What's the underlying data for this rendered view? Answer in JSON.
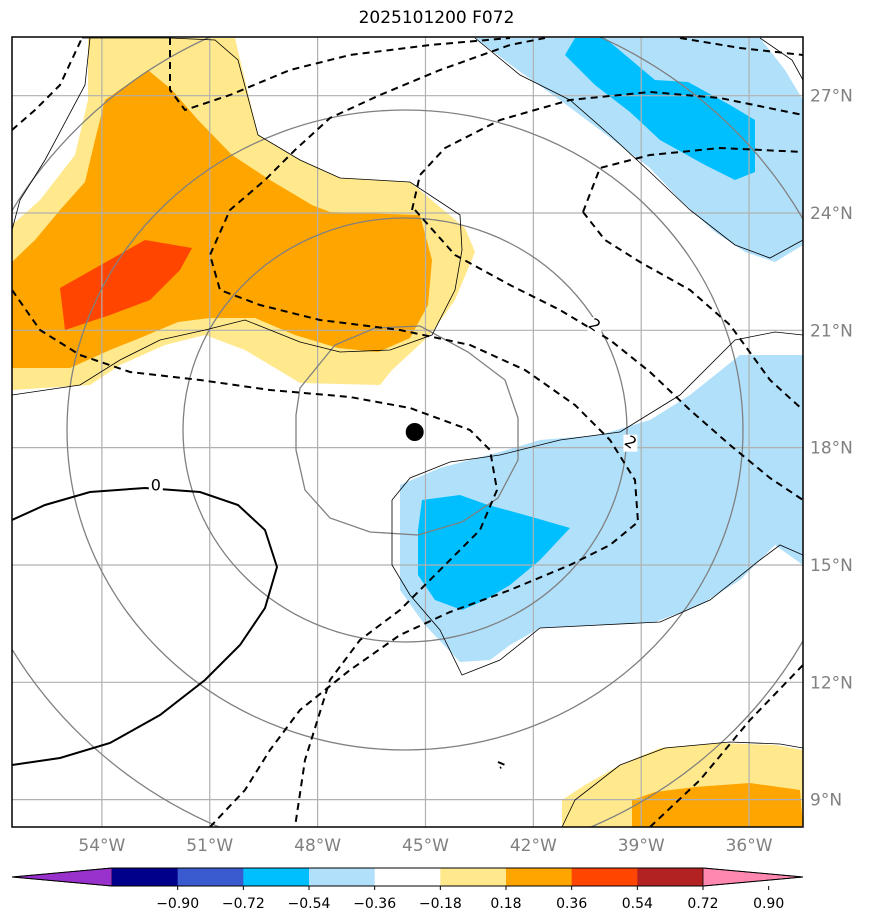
{
  "title": "2025101200 F072",
  "map": {
    "lon_range": [
      -56.5,
      -34.5
    ],
    "lat_range": [
      8.3,
      28.5
    ],
    "lon_ticks": [
      {
        "value": -54,
        "label": "54°W"
      },
      {
        "value": -51,
        "label": "51°W"
      },
      {
        "value": -48,
        "label": "48°W"
      },
      {
        "value": -45,
        "label": "45°W"
      },
      {
        "value": -42,
        "label": "42°W"
      },
      {
        "value": -39,
        "label": "39°W"
      },
      {
        "value": -36,
        "label": "36°W"
      }
    ],
    "lat_ticks": [
      {
        "value": 9,
        "label": "9°N"
      },
      {
        "value": 12,
        "label": "12°N"
      },
      {
        "value": 15,
        "label": "15°N"
      },
      {
        "value": 18,
        "label": "18°N"
      },
      {
        "value": 21,
        "label": "21°N"
      },
      {
        "value": 24,
        "label": "24°N"
      },
      {
        "value": 27,
        "label": "27°N"
      }
    ],
    "storm_center": {
      "lon": -45.3,
      "lat": 18.4
    },
    "contour_labels": [
      {
        "text": "0",
        "lon": -52.5,
        "lat": 16.9
      },
      {
        "text": "2",
        "lon": -40.3,
        "lat": 21.0
      },
      {
        "text": "2",
        "lon": -39.3,
        "lat": 18.0
      }
    ],
    "colors": {
      "grid": "#b0b0b0",
      "range_rings": "#808080",
      "light_blue": "#b0e0fa",
      "blue": "#00bfff",
      "light_yellow": "#ffe98c",
      "orange": "#ffa500",
      "red_orange": "#ff4500"
    }
  },
  "colorbar": {
    "ticks": [
      "−0.90",
      "−0.72",
      "−0.54",
      "−0.36",
      "−0.18",
      "0.18",
      "0.36",
      "0.54",
      "0.72",
      "0.90"
    ],
    "colors": [
      "#9932cc",
      "#00008b",
      "#3a5bd0",
      "#00bfff",
      "#b0e0fa",
      "#ffffff",
      "#ffe98c",
      "#ffa500",
      "#ff4500",
      "#b22222",
      "#ff88b0"
    ]
  }
}
